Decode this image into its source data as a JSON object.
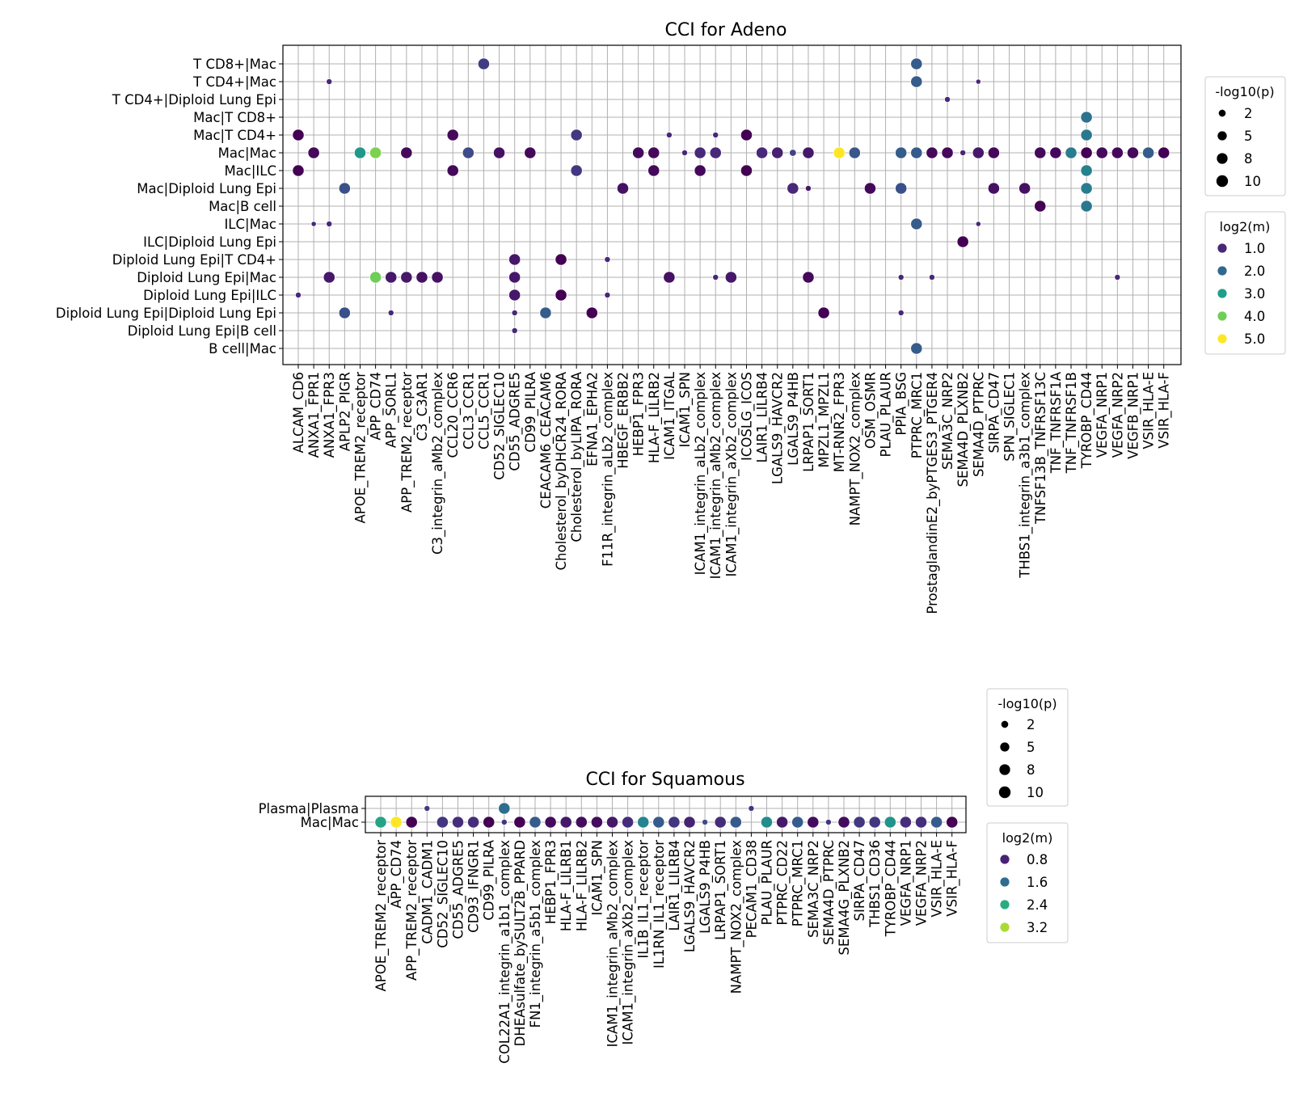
{
  "chart_data": [
    {
      "type": "scatter",
      "title": "CCI for Adeno",
      "xlabel": "",
      "ylabel": "",
      "grid": true,
      "x_categories": [
        "ALCAM_CD6",
        "ANXA1_FPR1",
        "ANXA1_FPR3",
        "APLP2_PIGR",
        "APOE_TREM2_receptor",
        "APP_CD74",
        "APP_SORL1",
        "APP_TREM2_receptor",
        "C3_C3AR1",
        "C3_integrin_aMb2_complex",
        "CCL20_CCR6",
        "CCL3_CCR1",
        "CCL5_CCR1",
        "CD52_SIGLEC10",
        "CD55_ADGRE5",
        "CD99_PILRA",
        "CEACAM6_CEACAM6",
        "Cholesterol_byDHCR24_RORA",
        "Cholesterol_byLIPA_RORA",
        "EFNA1_EPHA2",
        "F11R_integrin_aLb2_complex",
        "HBEGF_ERBB2",
        "HEBP1_FPR3",
        "HLA-F_LILRB2",
        "ICAM1_ITGAL",
        "ICAM1_SPN",
        "ICAM1_integrin_aLb2_complex",
        "ICAM1_integrin_aMb2_complex",
        "ICAM1_integrin_aXb2_complex",
        "ICOSLG_ICOS",
        "LAIR1_LILRB4",
        "LGALS9_HAVCR2",
        "LGALS9_P4HB",
        "LRPAP1_SORT1",
        "MPZL1_MPZL1",
        "MT-RNR2_FPR3",
        "NAMPT_NOX2_complex",
        "OSM_OSMR",
        "PLAU_PLAUR",
        "PPIA_BSG",
        "PTPRC_MRC1",
        "ProstaglandinE2_byPTGES3_PTGER4",
        "SEMA3C_NRP2",
        "SEMA4D_PLXNB2",
        "SEMA4D_PTPRC",
        "SIRPA_CD47",
        "SPN_SIGLEC1",
        "THBS1_integrin_a3b1_complex",
        "TNFSF13B_TNFRSF13C",
        "TNF_TNFRSF1A",
        "TNF_TNFRSF1B",
        "TYROBP_CD44",
        "VEGFA_NRP1",
        "VEGFA_NRP2",
        "VEGFB_NRP1",
        "VSIR_HLA-E",
        "VSIR_HLA-F"
      ],
      "y_categories": [
        "T CD8+|Mac",
        "T CD4+|Mac",
        "T CD4+|Diploid Lung Epi",
        "Mac|T CD8+",
        "Mac|T CD4+",
        "Mac|Mac",
        "Mac|ILC",
        "Mac|Diploid Lung Epi",
        "Mac|B cell",
        "ILC|Mac",
        "ILC|Diploid Lung Epi",
        "Diploid Lung Epi|T CD4+",
        "Diploid Lung Epi|Mac",
        "Diploid Lung Epi|ILC",
        "Diploid Lung Epi|Diploid Lung Epi",
        "Diploid Lung Epi|B cell",
        "B cell|Mac"
      ],
      "size_legend": {
        "title": "-log10(p)",
        "labels": [
          "2",
          "5",
          "8",
          "10"
        ],
        "values": [
          2,
          5,
          8,
          10
        ]
      },
      "color_legend": {
        "title": "log2(m)",
        "labels": [
          "1.0",
          "2.0",
          "3.0",
          "4.0",
          "5.0"
        ],
        "values": [
          1,
          2,
          3,
          4,
          5
        ]
      },
      "points": [
        [
          "CCL5_CCR1",
          "T CD8+|Mac",
          10,
          1.3
        ],
        [
          "PTPRC_MRC1",
          "T CD8+|Mac",
          10,
          1.8
        ],
        [
          "ANXA1_FPR3",
          "T CD4+|Mac",
          1,
          1.0
        ],
        [
          "PTPRC_MRC1",
          "T CD4+|Mac",
          10,
          1.8
        ],
        [
          "SEMA4D_PTPRC",
          "T CD4+|Mac",
          0.5,
          1.0
        ],
        [
          "SEMA3C_NRP2",
          "T CD4+|Diploid Lung Epi",
          1,
          1.0
        ],
        [
          "TYROBP_CD44",
          "Mac|T CD8+",
          10,
          2.2
        ],
        [
          "ALCAM_CD6",
          "Mac|T CD4+",
          10,
          0.5
        ],
        [
          "CCL20_CCR6",
          "Mac|T CD4+",
          10,
          0.6
        ],
        [
          "Cholesterol_byLIPA_RORA",
          "Mac|T CD4+",
          10,
          1.2
        ],
        [
          "ICAM1_ITGAL",
          "Mac|T CD4+",
          1,
          1.0
        ],
        [
          "ICAM1_integrin_aMb2_complex",
          "Mac|T CD4+",
          1,
          1.0
        ],
        [
          "ICOSLG_ICOS",
          "Mac|T CD4+",
          10,
          0.5
        ],
        [
          "TYROBP_CD44",
          "Mac|T CD4+",
          10,
          2.3
        ],
        [
          "ANXA1_FPR1",
          "Mac|Mac",
          10,
          0.6
        ],
        [
          "APOE_TREM2_receptor",
          "Mac|Mac",
          10,
          2.9
        ],
        [
          "APP_CD74",
          "Mac|Mac",
          10,
          4.1
        ],
        [
          "APP_TREM2_receptor",
          "Mac|Mac",
          10,
          0.6
        ],
        [
          "CCL3_CCR1",
          "Mac|Mac",
          10,
          1.5
        ],
        [
          "CD52_SIGLEC10",
          "Mac|Mac",
          10,
          0.7
        ],
        [
          "CD99_PILRA",
          "Mac|Mac",
          10,
          0.6
        ],
        [
          "HEBP1_FPR3",
          "Mac|Mac",
          10,
          0.6
        ],
        [
          "HLA-F_LILRB2",
          "Mac|Mac",
          10,
          0.6
        ],
        [
          "ICAM1_SPN",
          "Mac|Mac",
          1,
          1.0
        ],
        [
          "ICAM1_integrin_aLb2_complex",
          "Mac|Mac",
          10,
          1.0
        ],
        [
          "ICAM1_integrin_aMb2_complex",
          "Mac|Mac",
          10,
          1.0
        ],
        [
          "LAIR1_LILRB4",
          "Mac|Mac",
          10,
          1.0
        ],
        [
          "LGALS9_HAVCR2",
          "Mac|Mac",
          10,
          0.9
        ],
        [
          "LGALS9_P4HB",
          "Mac|Mac",
          2,
          1.4
        ],
        [
          "LRPAP1_SORT1",
          "Mac|Mac",
          10,
          0.8
        ],
        [
          "MT-RNR2_FPR3",
          "Mac|Mac",
          10,
          5.0
        ],
        [
          "NAMPT_NOX2_complex",
          "Mac|Mac",
          10,
          1.7
        ],
        [
          "PPIA_BSG",
          "Mac|Mac",
          10,
          1.8
        ],
        [
          "PTPRC_MRC1",
          "Mac|Mac",
          10,
          1.8
        ],
        [
          "ProstaglandinE2_byPTGES3_PTGER4",
          "Mac|Mac",
          10,
          0.6
        ],
        [
          "SEMA3C_NRP2",
          "Mac|Mac",
          10,
          0.6
        ],
        [
          "SEMA4D_PLXNB2",
          "Mac|Mac",
          1,
          1.0
        ],
        [
          "SEMA4D_PTPRC",
          "Mac|Mac",
          10,
          0.8
        ],
        [
          "SIRPA_CD47",
          "Mac|Mac",
          10,
          0.6
        ],
        [
          "TNFSF13B_TNFRSF13C",
          "Mac|Mac",
          10,
          0.6
        ],
        [
          "TNF_TNFRSF1A",
          "Mac|Mac",
          10,
          0.6
        ],
        [
          "TNF_TNFRSF1B",
          "Mac|Mac",
          10,
          2.4
        ],
        [
          "TYROBP_CD44",
          "Mac|Mac",
          10,
          0.5
        ],
        [
          "VEGFA_NRP1",
          "Mac|Mac",
          10,
          0.6
        ],
        [
          "VEGFA_NRP2",
          "Mac|Mac",
          10,
          0.6
        ],
        [
          "VEGFB_NRP1",
          "Mac|Mac",
          10,
          0.6
        ],
        [
          "VSIR_HLA-E",
          "Mac|Mac",
          10,
          1.8
        ],
        [
          "VSIR_HLA-F",
          "Mac|Mac",
          10,
          0.5
        ],
        [
          "ALCAM_CD6",
          "Mac|ILC",
          10,
          0.5
        ],
        [
          "CCL20_CCR6",
          "Mac|ILC",
          10,
          0.6
        ],
        [
          "Cholesterol_byLIPA_RORA",
          "Mac|ILC",
          10,
          1.2
        ],
        [
          "HLA-F_LILRB2",
          "Mac|ILC",
          10,
          0.6
        ],
        [
          "ICAM1_integrin_aLb2_complex",
          "Mac|ILC",
          10,
          0.6
        ],
        [
          "ICOSLG_ICOS",
          "Mac|ILC",
          10,
          0.5
        ],
        [
          "TYROBP_CD44",
          "Mac|ILC",
          10,
          2.5
        ],
        [
          "APLP2_PIGR",
          "Mac|Diploid Lung Epi",
          10,
          1.6
        ],
        [
          "HBEGF_ERBB2",
          "Mac|Diploid Lung Epi",
          10,
          0.7
        ],
        [
          "LGALS9_P4HB",
          "Mac|Diploid Lung Epi",
          10,
          1.0
        ],
        [
          "LRPAP1_SORT1",
          "Mac|Diploid Lung Epi",
          1,
          0.8
        ],
        [
          "OSM_OSMR",
          "Mac|Diploid Lung Epi",
          10,
          0.6
        ],
        [
          "PPIA_BSG",
          "Mac|Diploid Lung Epi",
          10,
          1.6
        ],
        [
          "SIRPA_CD47",
          "Mac|Diploid Lung Epi",
          10,
          0.7
        ],
        [
          "THBS1_integrin_a3b1_complex",
          "Mac|Diploid Lung Epi",
          10,
          0.7
        ],
        [
          "TYROBP_CD44",
          "Mac|Diploid Lung Epi",
          10,
          2.4
        ],
        [
          "TNFSF13B_TNFRSF13C",
          "Mac|B cell",
          10,
          0.5
        ],
        [
          "TYROBP_CD44",
          "Mac|B cell",
          10,
          2.3
        ],
        [
          "ANXA1_FPR1",
          "ILC|Mac",
          0.5,
          1.0
        ],
        [
          "ANXA1_FPR3",
          "ILC|Mac",
          1,
          1.0
        ],
        [
          "PTPRC_MRC1",
          "ILC|Mac",
          10,
          1.8
        ],
        [
          "SEMA4D_PTPRC",
          "ILC|Mac",
          0.5,
          1.0
        ],
        [
          "SEMA4D_PLXNB2",
          "ILC|Diploid Lung Epi",
          10,
          0.5
        ],
        [
          "CD55_ADGRE5",
          "Diploid Lung Epi|T CD4+",
          10,
          0.8
        ],
        [
          "Cholesterol_byDHCR24_RORA",
          "Diploid Lung Epi|T CD4+",
          10,
          0.5
        ],
        [
          "F11R_integrin_aLb2_complex",
          "Diploid Lung Epi|T CD4+",
          1,
          1.0
        ],
        [
          "ANXA1_FPR3",
          "Diploid Lung Epi|Mac",
          10,
          0.8
        ],
        [
          "APP_CD74",
          "Diploid Lung Epi|Mac",
          10,
          4.0
        ],
        [
          "APP_SORL1",
          "Diploid Lung Epi|Mac",
          10,
          0.8
        ],
        [
          "APP_TREM2_receptor",
          "Diploid Lung Epi|Mac",
          10,
          0.8
        ],
        [
          "C3_C3AR1",
          "Diploid Lung Epi|Mac",
          10,
          0.7
        ],
        [
          "C3_integrin_aMb2_complex",
          "Diploid Lung Epi|Mac",
          10,
          0.7
        ],
        [
          "CD55_ADGRE5",
          "Diploid Lung Epi|Mac",
          10,
          0.8
        ],
        [
          "ICAM1_ITGAL",
          "Diploid Lung Epi|Mac",
          10,
          0.7
        ],
        [
          "ICAM1_integrin_aMb2_complex",
          "Diploid Lung Epi|Mac",
          1,
          1.0
        ],
        [
          "ICAM1_integrin_aXb2_complex",
          "Diploid Lung Epi|Mac",
          10,
          0.8
        ],
        [
          "LRPAP1_SORT1",
          "Diploid Lung Epi|Mac",
          10,
          0.6
        ],
        [
          "PPIA_BSG",
          "Diploid Lung Epi|Mac",
          1,
          1.0
        ],
        [
          "ProstaglandinE2_byPTGES3_PTGER4",
          "Diploid Lung Epi|Mac",
          1,
          1.0
        ],
        [
          "VEGFA_NRP2",
          "Diploid Lung Epi|Mac",
          1,
          1.0
        ],
        [
          "ALCAM_CD6",
          "Diploid Lung Epi|ILC",
          1,
          1.0
        ],
        [
          "CD55_ADGRE5",
          "Diploid Lung Epi|ILC",
          10,
          0.8
        ],
        [
          "Cholesterol_byDHCR24_RORA",
          "Diploid Lung Epi|ILC",
          10,
          0.5
        ],
        [
          "F11R_integrin_aLb2_complex",
          "Diploid Lung Epi|ILC",
          1,
          1.0
        ],
        [
          "APLP2_PIGR",
          "Diploid Lung Epi|Diploid Lung Epi",
          10,
          1.6
        ],
        [
          "APP_SORL1",
          "Diploid Lung Epi|Diploid Lung Epi",
          1,
          1.0
        ],
        [
          "CD55_ADGRE5",
          "Diploid Lung Epi|Diploid Lung Epi",
          1,
          1.0
        ],
        [
          "CEACAM6_CEACAM6",
          "Diploid Lung Epi|Diploid Lung Epi",
          10,
          1.8
        ],
        [
          "EFNA1_EPHA2",
          "Diploid Lung Epi|Diploid Lung Epi",
          10,
          0.5
        ],
        [
          "MPZL1_MPZL1",
          "Diploid Lung Epi|Diploid Lung Epi",
          10,
          0.5
        ],
        [
          "PPIA_BSG",
          "Diploid Lung Epi|Diploid Lung Epi",
          1,
          1.0
        ],
        [
          "CD55_ADGRE5",
          "Diploid Lung Epi|B cell",
          1,
          1.0
        ],
        [
          "PTPRC_MRC1",
          "B cell|Mac",
          10,
          1.8
        ]
      ]
    },
    {
      "type": "scatter",
      "title": "CCI for Squamous",
      "xlabel": "",
      "ylabel": "",
      "grid": true,
      "x_categories": [
        "APOE_TREM2_receptor",
        "APP_CD74",
        "APP_TREM2_receptor",
        "CADM1_CADM1",
        "CD52_SIGLEC10",
        "CD55_ADGRE5",
        "CD93_IFNGR1",
        "CD99_PILRA",
        "COL22A1_integrin_a1b1_complex",
        "DHEAsulfate_bySULT2B_PPARD",
        "FN1_integrin_a5b1_complex",
        "HEBP1_FPR3",
        "HLA-F_LILRB1",
        "HLA-F_LILRB2",
        "ICAM1_SPN",
        "ICAM1_integrin_aMb2_complex",
        "ICAM1_integrin_aXb2_complex",
        "IL1B_IL1_receptor",
        "IL1RN_IL1_receptor",
        "LAIR1_LILRB4",
        "LGALS9_HAVCR2",
        "LGALS9_P4HB",
        "LRPAP1_SORT1",
        "NAMPT_NOX2_complex",
        "PECAM1_CD38",
        "PLAU_PLAUR",
        "PTPRC_CD22",
        "PTPRC_MRC1",
        "SEMA3C_NRP2",
        "SEMA4D_PTPRC",
        "SEMA4G_PLXNB2",
        "SIRPA_CD47",
        "THBS1_CD36",
        "TYROBP_CD44",
        "VEGFA_NRP1",
        "VEGFA_NRP2",
        "VSIR_HLA-E",
        "VSIR_HLA-F"
      ],
      "y_categories": [
        "Plasma|Plasma",
        "Mac|Mac"
      ],
      "size_legend": {
        "title": "-log10(p)",
        "labels": [
          "2",
          "5",
          "8",
          "10"
        ],
        "values": [
          2,
          5,
          8,
          10
        ]
      },
      "color_legend": {
        "title": "log2(m)",
        "labels": [
          "0.8",
          "1.6",
          "2.4",
          "3.2"
        ],
        "values": [
          0.8,
          1.6,
          2.4,
          3.2
        ]
      },
      "points": [
        [
          "CADM1_CADM1",
          "Plasma|Plasma",
          1,
          1.0
        ],
        [
          "COL22A1_integrin_a1b1_complex",
          "Plasma|Plasma",
          10,
          1.6
        ],
        [
          "PECAM1_CD38",
          "Plasma|Plasma",
          1,
          1.0
        ],
        [
          "APOE_TREM2_receptor",
          "Mac|Mac",
          10,
          2.3
        ],
        [
          "APP_CD74",
          "Mac|Mac",
          10,
          3.6
        ],
        [
          "APP_TREM2_receptor",
          "Mac|Mac",
          10,
          0.5
        ],
        [
          "CD52_SIGLEC10",
          "Mac|Mac",
          10,
          1.0
        ],
        [
          "CD55_ADGRE5",
          "Mac|Mac",
          10,
          0.9
        ],
        [
          "CD93_IFNGR1",
          "Mac|Mac",
          10,
          0.9
        ],
        [
          "CD99_PILRA",
          "Mac|Mac",
          10,
          0.5
        ],
        [
          "COL22A1_integrin_a1b1_complex",
          "Mac|Mac",
          1,
          1.0
        ],
        [
          "DHEAsulfate_bySULT2B_PPARD",
          "Mac|Mac",
          10,
          0.5
        ],
        [
          "FN1_integrin_a5b1_complex",
          "Mac|Mac",
          10,
          1.4
        ],
        [
          "HEBP1_FPR3",
          "Mac|Mac",
          10,
          0.6
        ],
        [
          "HLA-F_LILRB1",
          "Mac|Mac",
          10,
          0.7
        ],
        [
          "HLA-F_LILRB2",
          "Mac|Mac",
          10,
          0.6
        ],
        [
          "ICAM1_SPN",
          "Mac|Mac",
          10,
          0.6
        ],
        [
          "ICAM1_integrin_aMb2_complex",
          "Mac|Mac",
          10,
          0.7
        ],
        [
          "ICAM1_integrin_aXb2_complex",
          "Mac|Mac",
          10,
          0.9
        ],
        [
          "IL1B_IL1_receptor",
          "Mac|Mac",
          10,
          1.9
        ],
        [
          "IL1RN_IL1_receptor",
          "Mac|Mac",
          10,
          1.4
        ],
        [
          "LAIR1_LILRB4",
          "Mac|Mac",
          10,
          1.0
        ],
        [
          "LGALS9_HAVCR2",
          "Mac|Mac",
          10,
          0.8
        ],
        [
          "LGALS9_P4HB",
          "Mac|Mac",
          1,
          1.2
        ],
        [
          "LRPAP1_SORT1",
          "Mac|Mac",
          10,
          0.9
        ],
        [
          "NAMPT_NOX2_complex",
          "Mac|Mac",
          10,
          1.4
        ],
        [
          "PLAU_PLAUR",
          "Mac|Mac",
          10,
          2.0
        ],
        [
          "PTPRC_CD22",
          "Mac|Mac",
          10,
          0.7
        ],
        [
          "PTPRC_MRC1",
          "Mac|Mac",
          10,
          1.4
        ],
        [
          "SEMA3C_NRP2",
          "Mac|Mac",
          10,
          0.6
        ],
        [
          "SEMA4D_PTPRC",
          "Mac|Mac",
          1,
          1.0
        ],
        [
          "SEMA4G_PLXNB2",
          "Mac|Mac",
          10,
          0.6
        ],
        [
          "SIRPA_CD47",
          "Mac|Mac",
          10,
          1.0
        ],
        [
          "THBS1_CD36",
          "Mac|Mac",
          10,
          1.0
        ],
        [
          "TYROBP_CD44",
          "Mac|Mac",
          10,
          2.1
        ],
        [
          "VEGFA_NRP1",
          "Mac|Mac",
          10,
          0.9
        ],
        [
          "VEGFA_NRP2",
          "Mac|Mac",
          10,
          0.9
        ],
        [
          "VSIR_HLA-E",
          "Mac|Mac",
          10,
          1.4
        ],
        [
          "VSIR_HLA-F",
          "Mac|Mac",
          10,
          0.5
        ]
      ]
    }
  ]
}
